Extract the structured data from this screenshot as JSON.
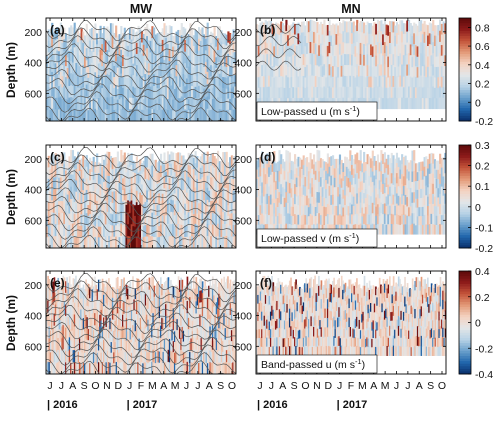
{
  "chart_data": {
    "type": "heatmap",
    "column_titles": [
      "MW",
      "MN"
    ],
    "ylabel": "Depth (m)",
    "y_ticks": [
      200,
      400,
      600
    ],
    "ylim": [
      780,
      110
    ],
    "x_ticks": [
      "J",
      "J",
      "A",
      "S",
      "O",
      "N",
      "D",
      "J",
      "F",
      "M",
      "A",
      "M",
      "J",
      "J",
      "A",
      "S",
      "O"
    ],
    "year_labels": [
      "2016",
      "2017"
    ],
    "panels": [
      {
        "label": "(a)",
        "station": "MW",
        "field": "u",
        "row": 0,
        "col": 0,
        "inset": ""
      },
      {
        "label": "(b)",
        "station": "MN",
        "field": "u",
        "row": 0,
        "col": 1,
        "inset": "Low-passed u (m s",
        "inset_sup": "-1",
        "inset_close": ")"
      },
      {
        "label": "(c)",
        "station": "MW",
        "field": "v",
        "row": 1,
        "col": 0,
        "inset": ""
      },
      {
        "label": "(d)",
        "station": "MN",
        "field": "v",
        "row": 1,
        "col": 1,
        "inset": "Low-passed v (m s",
        "inset_sup": "-1",
        "inset_close": ")"
      },
      {
        "label": "(e)",
        "station": "MW",
        "field": "bp",
        "row": 2,
        "col": 0,
        "inset": ""
      },
      {
        "label": "(f)",
        "station": "MN",
        "field": "bp",
        "row": 2,
        "col": 1,
        "inset": "Band-passed u (m s",
        "inset_sup": "-1",
        "inset_close": ")"
      }
    ],
    "colorbars": [
      {
        "row": 0,
        "range": [
          -0.2,
          0.9
        ],
        "ticks": [
          "0.8",
          "0.6",
          "0.4",
          "0.2",
          "0",
          "-0.2"
        ]
      },
      {
        "row": 1,
        "range": [
          -0.2,
          0.3
        ],
        "ticks": [
          "0.3",
          "0.2",
          "0.1",
          "0",
          "-0.1",
          "-0.2"
        ]
      },
      {
        "row": 2,
        "range": [
          -0.4,
          0.4
        ],
        "ticks": [
          "0.4",
          "0.2",
          "0",
          "-0.2",
          "-0.4"
        ]
      }
    ],
    "colormap": [
      "#0a2f6b",
      "#2166ac",
      "#6aa0cc",
      "#b7d2e6",
      "#e3e6e8",
      "#f4d3c2",
      "#e39a78",
      "#c4543a",
      "#8c1a1a",
      "#5c0a0a"
    ]
  }
}
